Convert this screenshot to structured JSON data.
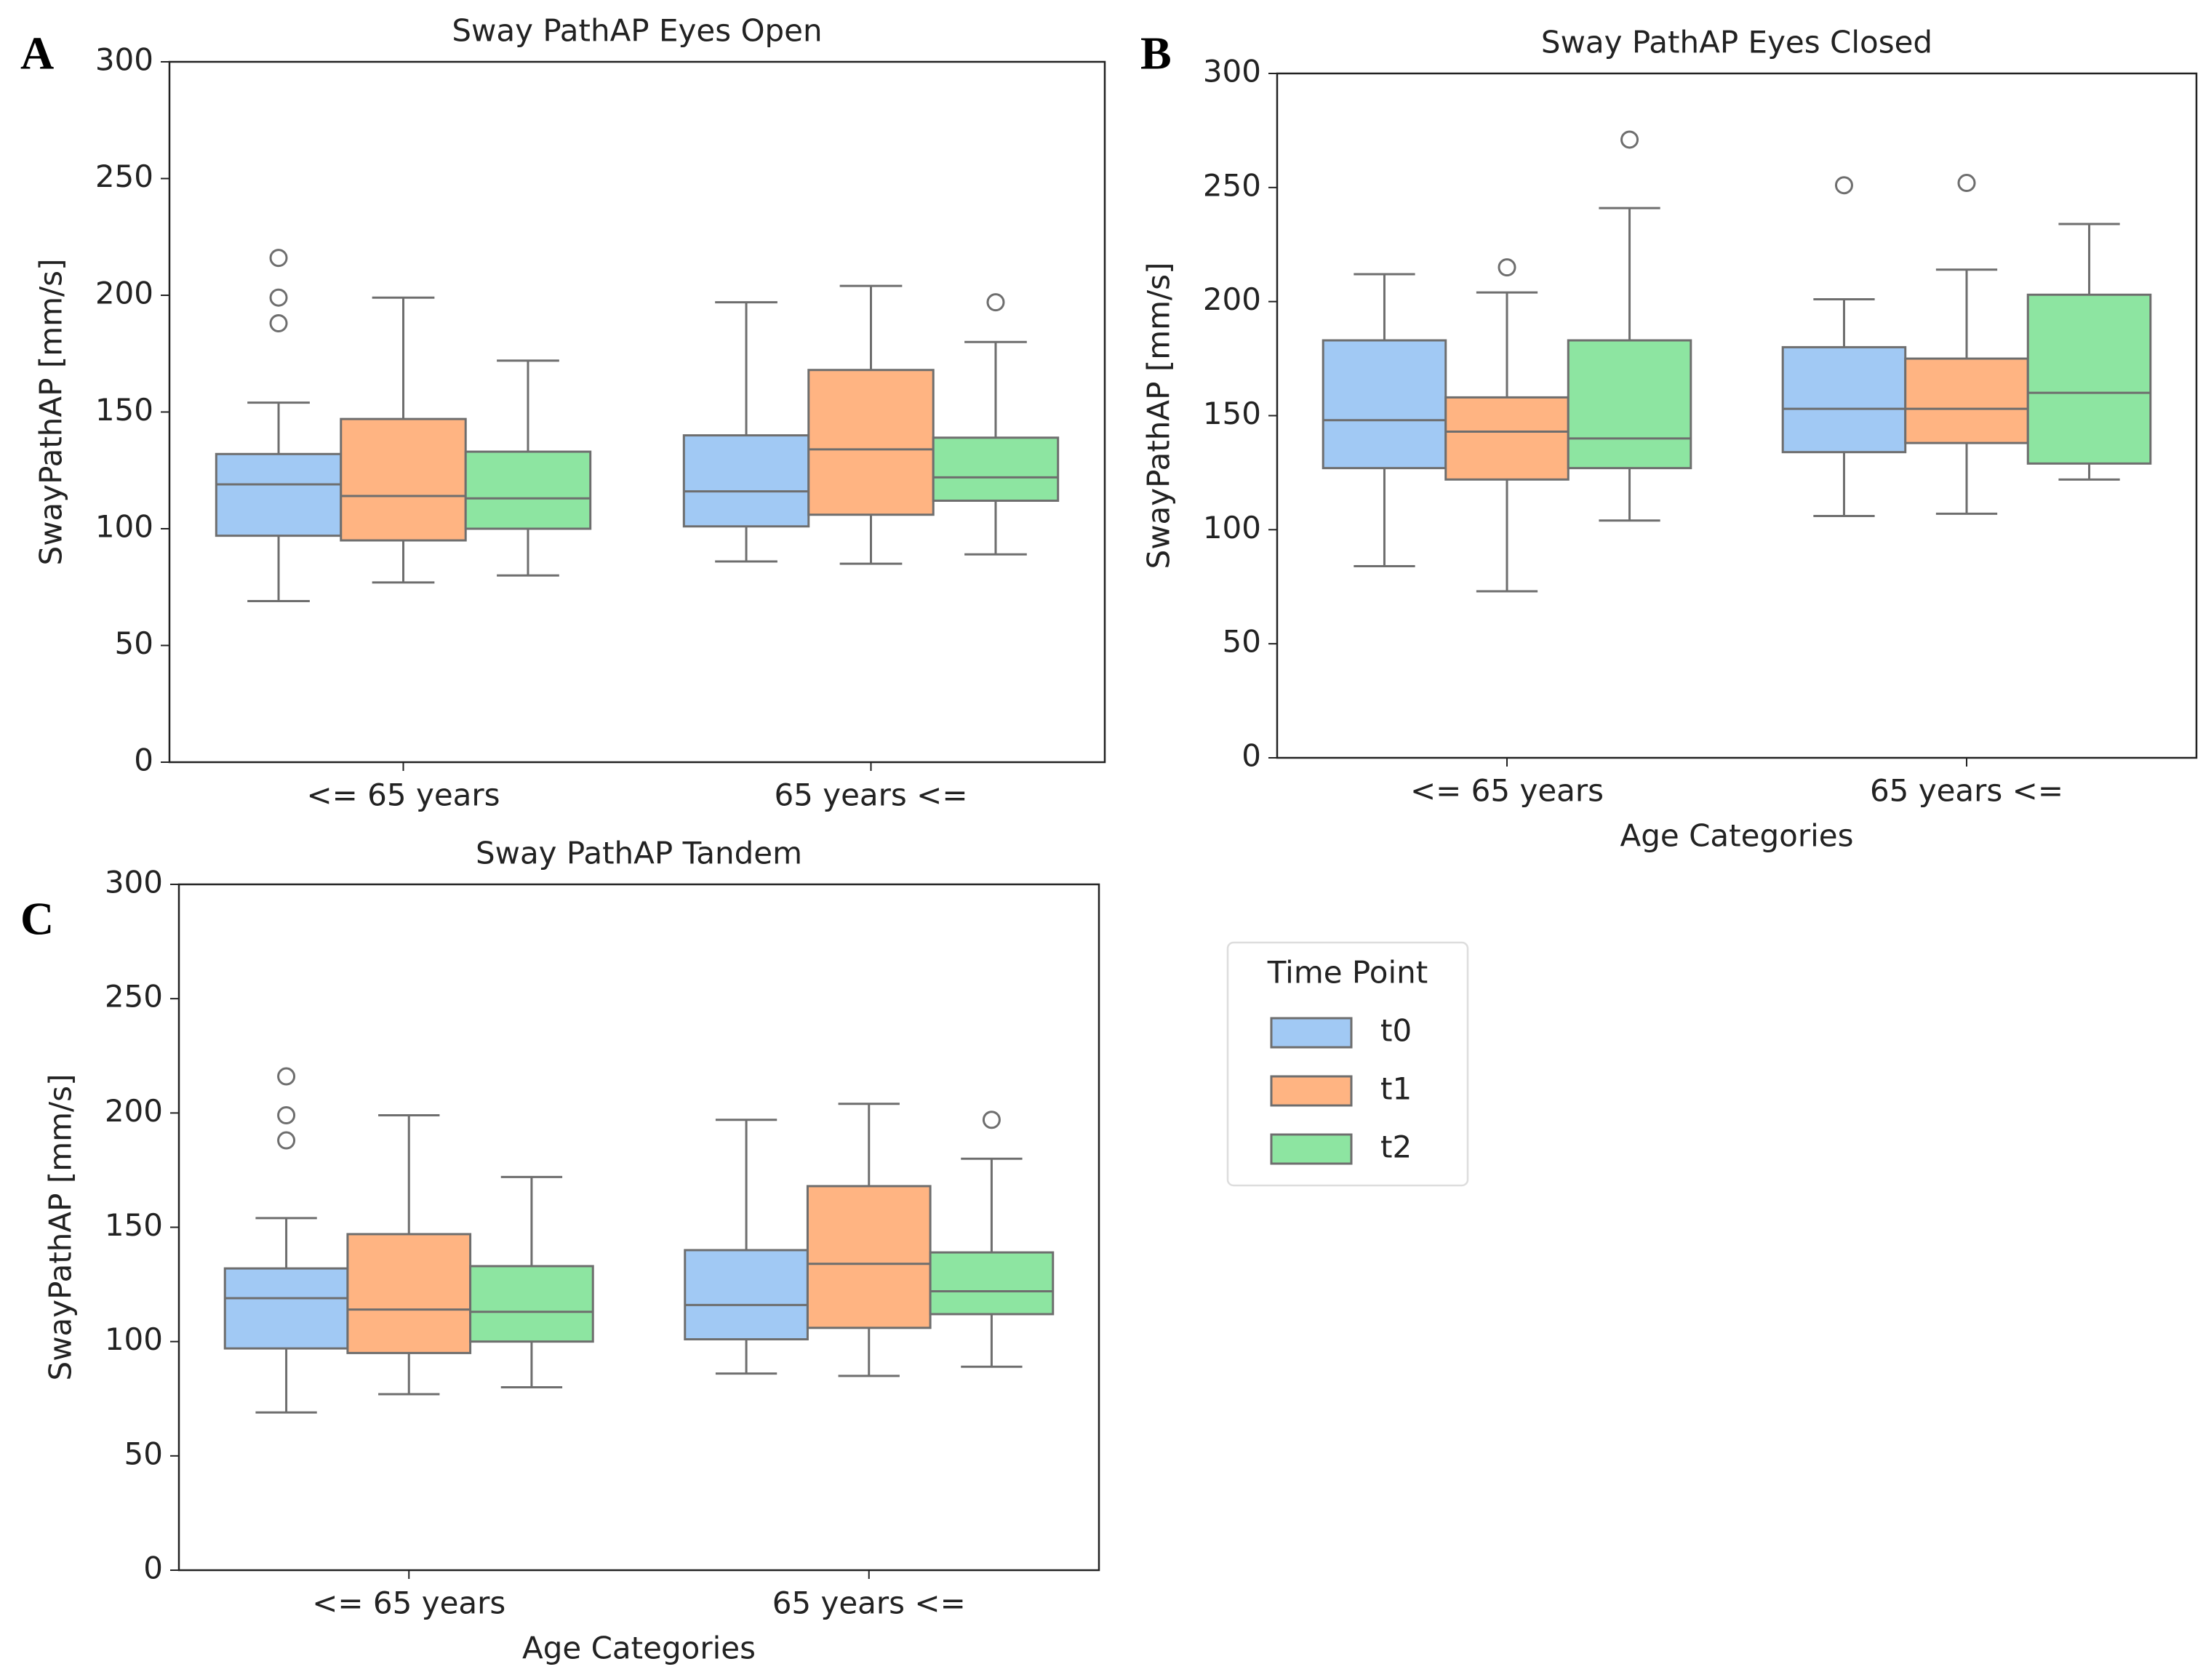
{
  "chart_data": [
    {
      "type": "box",
      "panel_label": "A",
      "title": "Sway PathAP Eyes Open",
      "y_label": "SwayPathAP [mm/s]",
      "categories": [
        "<= 65 years",
        "65 years <="
      ],
      "ylim": [
        0,
        300
      ],
      "yticks": [
        0,
        50,
        100,
        150,
        200,
        250,
        300
      ],
      "series": [
        {
          "color": "#a1c9f4",
          "values": [
            {
              "whislo": 69,
              "q1": 97,
              "med": 119,
              "q3": 132,
              "whishi": 154,
              "fliers": [
                188,
                199,
                216
              ]
            },
            {
              "whislo": 86,
              "q1": 101,
              "med": 116,
              "q3": 140,
              "whishi": 197,
              "fliers": []
            }
          ]
        },
        {
          "color": "#ffb482",
          "values": [
            {
              "whislo": 77,
              "q1": 95,
              "med": 114,
              "q3": 147,
              "whishi": 199,
              "fliers": []
            },
            {
              "whislo": 85,
              "q1": 106,
              "med": 134,
              "q3": 168,
              "whishi": 204,
              "fliers": []
            }
          ]
        },
        {
          "color": "#8de5a1",
          "values": [
            {
              "whislo": 80,
              "q1": 100,
              "med": 113,
              "q3": 133,
              "whishi": 172,
              "fliers": []
            },
            {
              "whislo": 89,
              "q1": 112,
              "med": 122,
              "q3": 139,
              "whishi": 180,
              "fliers": [
                197
              ]
            }
          ]
        }
      ]
    },
    {
      "type": "box",
      "panel_label": "B",
      "title": "Sway PathAP Eyes Closed",
      "y_label": "SwayPathAP [mm/s]",
      "x_label": "Age Categories",
      "categories": [
        "<= 65 years",
        "65 years <="
      ],
      "ylim": [
        0,
        300
      ],
      "yticks": [
        0,
        50,
        100,
        150,
        200,
        250,
        300
      ],
      "series": [
        {
          "color": "#a1c9f4",
          "values": [
            {
              "whislo": 84,
              "q1": 127,
              "med": 148,
              "q3": 183,
              "whishi": 212,
              "fliers": []
            },
            {
              "whislo": 106,
              "q1": 134,
              "med": 153,
              "q3": 180,
              "whishi": 201,
              "fliers": [
                251
              ]
            }
          ]
        },
        {
          "color": "#ffb482",
          "values": [
            {
              "whislo": 73,
              "q1": 122,
              "med": 143,
              "q3": 158,
              "whishi": 204,
              "fliers": [
                215
              ]
            },
            {
              "whislo": 107,
              "q1": 138,
              "med": 153,
              "q3": 175,
              "whishi": 214,
              "fliers": [
                252
              ]
            }
          ]
        },
        {
          "color": "#8de5a1",
          "values": [
            {
              "whislo": 104,
              "q1": 127,
              "med": 140,
              "q3": 183,
              "whishi": 241,
              "fliers": [
                271
              ]
            },
            {
              "whislo": 122,
              "q1": 129,
              "med": 160,
              "q3": 203,
              "whishi": 234,
              "fliers": []
            }
          ]
        }
      ]
    },
    {
      "type": "box",
      "panel_label": "C",
      "title": "Sway PathAP Tandem",
      "y_label": "SwayPathAP [mm/s]",
      "x_label": "Age Categories",
      "categories": [
        "<= 65 years",
        "65 years <="
      ],
      "ylim": [
        0,
        300
      ],
      "yticks": [
        0,
        50,
        100,
        150,
        200,
        250,
        300
      ],
      "legend": "right",
      "legend_title": "Time Point",
      "series": [
        {
          "name": "t0",
          "color": "#a1c9f4",
          "values": [
            {
              "whislo": 69,
              "q1": 97,
              "med": 119,
              "q3": 132,
              "whishi": 154,
              "fliers": [
                188,
                199,
                216
              ]
            },
            {
              "whislo": 86,
              "q1": 101,
              "med": 116,
              "q3": 140,
              "whishi": 197,
              "fliers": []
            }
          ]
        },
        {
          "name": "t1",
          "color": "#ffb482",
          "values": [
            {
              "whislo": 77,
              "q1": 95,
              "med": 114,
              "q3": 147,
              "whishi": 199,
              "fliers": []
            },
            {
              "whislo": 85,
              "q1": 106,
              "med": 134,
              "q3": 168,
              "whishi": 204,
              "fliers": []
            }
          ]
        },
        {
          "name": "t2",
          "color": "#8de5a1",
          "values": [
            {
              "whislo": 80,
              "q1": 100,
              "med": 113,
              "q3": 133,
              "whishi": 172,
              "fliers": []
            },
            {
              "whislo": 89,
              "q1": 112,
              "med": 122,
              "q3": 139,
              "whishi": 180,
              "fliers": [
                197
              ]
            }
          ]
        }
      ]
    }
  ]
}
